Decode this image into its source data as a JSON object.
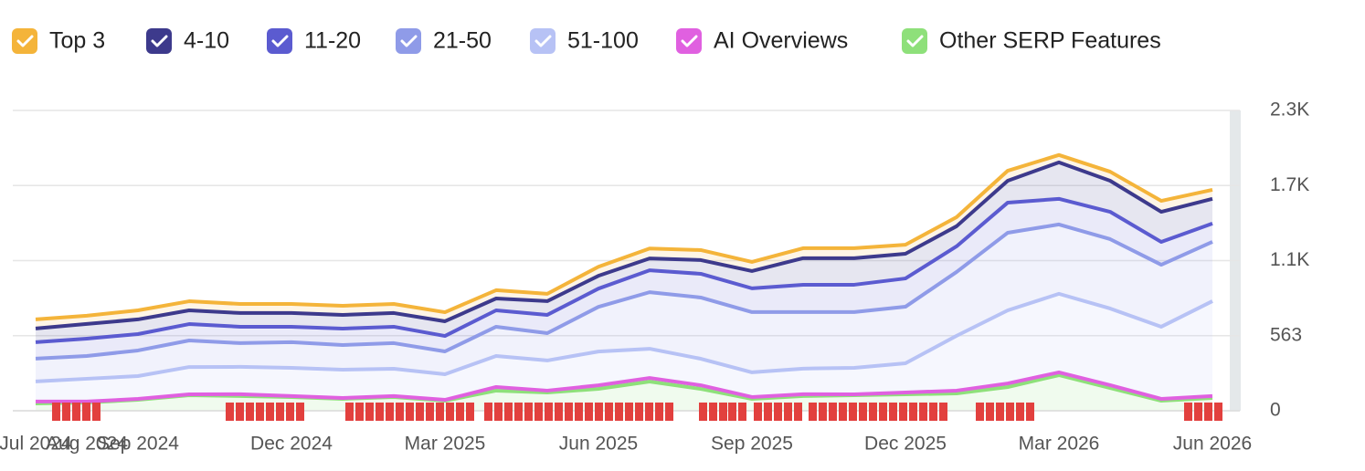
{
  "chart_data": {
    "type": "area",
    "stacked": true,
    "categories": [
      "Jul 2024",
      "Aug 2024",
      "Sep 2024",
      null,
      null,
      "Dec 2024",
      null,
      null,
      "Mar 2025",
      null,
      null,
      "Jun 2025",
      null,
      null,
      "Sep 2025",
      null,
      null,
      "Dec 2025",
      null,
      null,
      "Mar 2026",
      null,
      null,
      "Jun 2026"
    ],
    "series": [
      {
        "name": "Top 3",
        "color": "#f4b43a",
        "values": [
          68,
          62,
          68,
          68,
          68,
          68,
          68,
          68,
          68,
          62,
          55,
          68,
          75,
          75,
          68,
          75,
          75,
          68,
          68,
          75,
          55,
          68,
          82,
          68
        ]
      },
      {
        "name": "4-10",
        "color": "#3d3a8c",
        "values": [
          103,
          110,
          110,
          103,
          103,
          103,
          103,
          103,
          110,
          89,
          103,
          96,
          89,
          103,
          130,
          199,
          199,
          185,
          151,
          164,
          274,
          233,
          226,
          185
        ]
      },
      {
        "name": "11-20",
        "color": "#5b5bd0",
        "values": [
          123,
          130,
          123,
          123,
          123,
          116,
          123,
          123,
          116,
          123,
          137,
          137,
          164,
          178,
          178,
          205,
          205,
          212,
          192,
          226,
          192,
          205,
          171,
          137
        ]
      },
      {
        "name": "21-50",
        "color": "#8f9be8",
        "values": [
          171,
          171,
          192,
          199,
          178,
          192,
          185,
          192,
          171,
          219,
          205,
          335,
          424,
          459,
          452,
          424,
          418,
          424,
          479,
          582,
          520,
          520,
          465,
          445
        ]
      },
      {
        "name": "51-100",
        "color": "#b7c2f5",
        "values": [
          151,
          171,
          171,
          205,
          205,
          212,
          212,
          205,
          192,
          233,
          226,
          253,
          219,
          199,
          185,
          192,
          199,
          219,
          411,
          548,
          589,
          575,
          541,
          712
        ]
      },
      {
        "name": "AI Overviews",
        "color": "#e060e0",
        "values": [
          14,
          7,
          7,
          7,
          14,
          7,
          7,
          7,
          7,
          27,
          14,
          27,
          27,
          27,
          14,
          14,
          7,
          14,
          21,
          27,
          21,
          21,
          14,
          14
        ]
      },
      {
        "name": "Other SERP Features",
        "color": "#8ee07a",
        "values": [
          55,
          62,
          82,
          116,
          110,
          103,
          89,
          103,
          75,
          151,
          137,
          164,
          219,
          164,
          89,
          110,
          116,
          123,
          130,
          178,
          267,
          171,
          75,
          96
        ]
      }
    ],
    "ylim": [
      0,
      2252
    ],
    "yticks": [
      0,
      563,
      {
        "value": 1126,
        "label": "1.1K"
      },
      {
        "value": 1689,
        "label": "1.7K"
      },
      {
        "value": 2252,
        "label": "2.3K"
      }
    ],
    "grid": true
  }
}
